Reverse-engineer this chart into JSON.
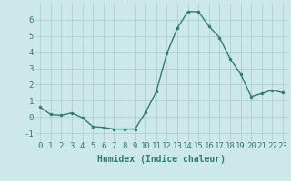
{
  "x": [
    0,
    1,
    2,
    3,
    4,
    5,
    6,
    7,
    8,
    9,
    10,
    11,
    12,
    13,
    14,
    15,
    16,
    17,
    18,
    19,
    20,
    21,
    22,
    23
  ],
  "y": [
    0.6,
    0.15,
    0.1,
    0.25,
    -0.05,
    -0.6,
    -0.65,
    -0.75,
    -0.75,
    -0.75,
    0.3,
    1.55,
    3.9,
    5.5,
    6.5,
    6.5,
    5.6,
    4.9,
    3.6,
    2.65,
    1.25,
    1.45,
    1.65,
    1.5
  ],
  "line_color": "#2e7d6e",
  "marker": "o",
  "marker_size": 2,
  "linewidth": 1.0,
  "xlabel": "Humidex (Indice chaleur)",
  "xlim": [
    -0.5,
    23.5
  ],
  "ylim": [
    -1.5,
    7.0
  ],
  "yticks": [
    -1,
    0,
    1,
    2,
    3,
    4,
    5,
    6
  ],
  "xticks": [
    0,
    1,
    2,
    3,
    4,
    5,
    6,
    7,
    8,
    9,
    10,
    11,
    12,
    13,
    14,
    15,
    16,
    17,
    18,
    19,
    20,
    21,
    22,
    23
  ],
  "bg_color": "#cde8e8",
  "grid_color": "#aecfcf",
  "line_text_color": "#2e7d6e",
  "xlabel_fontsize": 7,
  "tick_fontsize": 6.5
}
